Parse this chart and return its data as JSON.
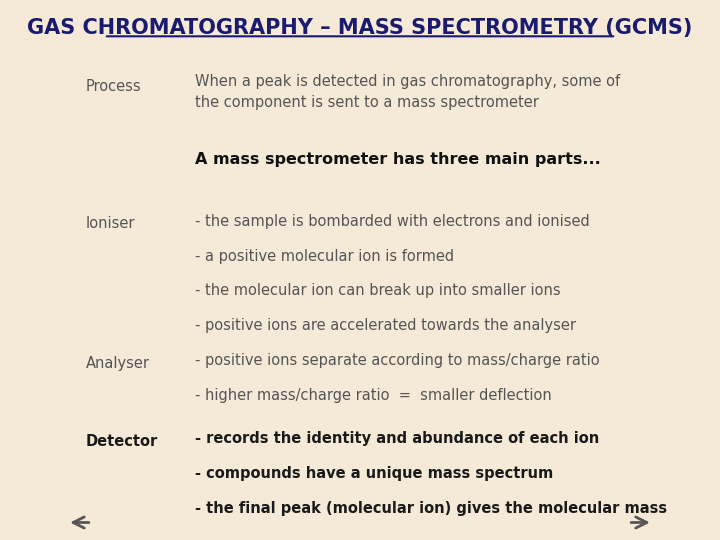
{
  "bg_color": "#f5ead8",
  "title": "GAS CHROMATOGRAPHY – MASS SPECTROMETRY (GCMS)",
  "title_color": "#1a1a6e",
  "title_fontsize": 15,
  "title_bold": true,
  "title_underline": true,
  "process_label": "Process",
  "process_text": "When a peak is detected in gas chromatography, some of\nthe component is sent to a mass spectrometer",
  "middle_text": "A mass spectrometer has three main parts...",
  "ioniser_label": "Ioniser",
  "ioniser_lines": [
    "the sample is bombarded with electrons and ionised",
    "a positive molecular ion is formed",
    "the molecular ion can break up into smaller ions",
    "positive ions are accelerated towards the analyser"
  ],
  "analyser_label": "Analyser",
  "analyser_lines": [
    "positive ions separate according to mass/charge ratio",
    "higher mass/charge ratio  =  smaller deflection"
  ],
  "detector_label": "Detector",
  "detector_lines": [
    "records the identity and abundance of each ion",
    "compounds have a unique mass spectrum",
    "the final peak (molecular ion) gives the molecular mass"
  ],
  "label_color": "#555555",
  "body_color": "#555555",
  "body_fontsize": 10.5,
  "label_fontsize": 10.5,
  "middle_fontsize": 11.5,
  "detector_color": "#1a1a1a",
  "arrow_color": "#555555"
}
